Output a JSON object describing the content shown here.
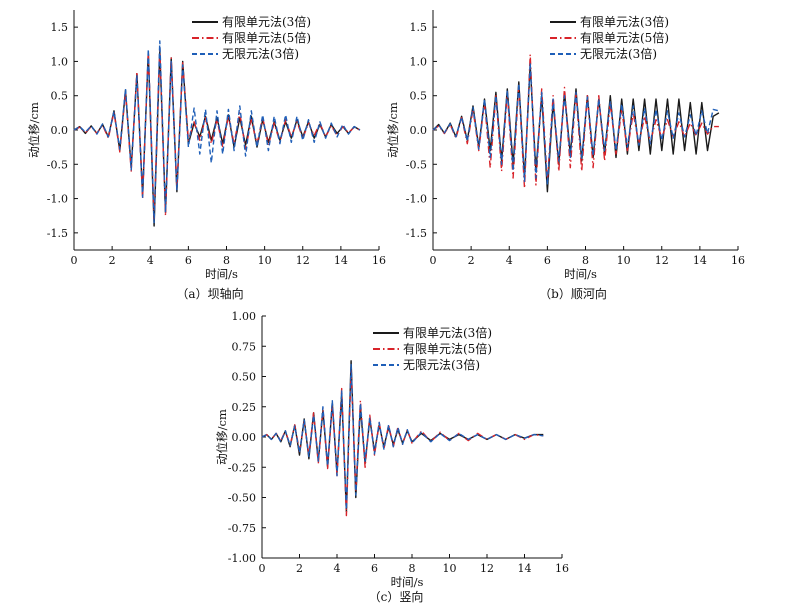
{
  "chart_data": [
    {
      "id": "a",
      "type": "line",
      "caption": "（a）坝轴向",
      "xlabel": "时间/s",
      "ylabel": "动位移/cm",
      "xlim": [
        0,
        16
      ],
      "ylim": [
        -1.75,
        1.75
      ],
      "xticks": [
        "0",
        "2",
        "4",
        "6",
        "8",
        "10",
        "12",
        "14",
        "16"
      ],
      "yticks": [
        "-1.5",
        "-1.0",
        "-0.5",
        "0.0",
        "0.5",
        "1.0",
        "1.5"
      ],
      "legend_position": "top-right",
      "series": [
        {
          "name": "有限单元法(3倍)",
          "color": "#1a1a1a",
          "dash": "solid",
          "x": [
            0,
            0.3,
            0.6,
            0.9,
            1.2,
            1.5,
            1.8,
            2.1,
            2.4,
            2.7,
            3.0,
            3.3,
            3.6,
            3.9,
            4.2,
            4.5,
            4.8,
            5.1,
            5.4,
            5.7,
            6.0,
            6.3,
            6.6,
            6.9,
            7.2,
            7.5,
            7.8,
            8.1,
            8.4,
            8.7,
            9.0,
            9.3,
            9.6,
            9.9,
            10.2,
            10.5,
            10.8,
            11.1,
            11.4,
            11.7,
            12.0,
            12.3,
            12.6,
            12.9,
            13.2,
            13.5,
            13.8,
            14.1,
            14.4,
            14.7,
            15.0
          ],
          "y": [
            0.0,
            0.05,
            -0.05,
            0.06,
            -0.05,
            0.08,
            -0.1,
            0.28,
            -0.3,
            0.58,
            -0.55,
            0.82,
            -0.95,
            1.12,
            -1.4,
            1.15,
            -1.2,
            1.05,
            -0.9,
            1.0,
            -0.2,
            0.1,
            -0.1,
            0.2,
            -0.15,
            0.18,
            -0.2,
            0.22,
            -0.25,
            0.18,
            -0.22,
            0.2,
            -0.25,
            0.15,
            -0.18,
            0.12,
            -0.15,
            0.12,
            -0.12,
            0.15,
            -0.1,
            0.12,
            -0.12,
            0.08,
            -0.1,
            0.08,
            -0.05,
            0.05,
            -0.05,
            0.05,
            0.0
          ]
        },
        {
          "name": "有限单元法(5倍)",
          "color": "#d8232a",
          "dash": "dashdot",
          "x": [
            0,
            0.3,
            0.6,
            0.9,
            1.2,
            1.5,
            1.8,
            2.1,
            2.4,
            2.7,
            3.0,
            3.3,
            3.6,
            3.9,
            4.2,
            4.5,
            4.8,
            5.1,
            5.4,
            5.7,
            6.0,
            6.3,
            6.6,
            6.9,
            7.2,
            7.5,
            7.8,
            8.1,
            8.4,
            8.7,
            9.0,
            9.3,
            9.6,
            9.9,
            10.2,
            10.5,
            10.8,
            11.1,
            11.4,
            11.7,
            12.0,
            12.3,
            12.6,
            12.9,
            13.2,
            13.5,
            13.8,
            14.1,
            14.4,
            14.7,
            15.0
          ],
          "y": [
            0.0,
            0.04,
            -0.04,
            0.05,
            -0.05,
            0.07,
            -0.12,
            0.26,
            -0.32,
            0.55,
            -0.6,
            0.85,
            -1.0,
            1.15,
            -1.3,
            1.2,
            -1.25,
            1.05,
            -0.85,
            0.98,
            -0.15,
            0.12,
            -0.15,
            0.18,
            -0.2,
            0.15,
            -0.25,
            0.2,
            -0.2,
            0.25,
            -0.28,
            0.15,
            -0.2,
            0.18,
            -0.22,
            0.1,
            -0.18,
            0.15,
            -0.1,
            0.12,
            -0.12,
            0.1,
            -0.08,
            0.1,
            -0.1,
            0.06,
            -0.08,
            0.05,
            -0.04,
            0.04,
            0.0
          ]
        },
        {
          "name": "无限元法(3倍)",
          "color": "#1f5fb8",
          "dash": "dashed",
          "x": [
            0,
            0.3,
            0.6,
            0.9,
            1.2,
            1.5,
            1.8,
            2.1,
            2.4,
            2.7,
            3.0,
            3.3,
            3.6,
            3.9,
            4.2,
            4.5,
            4.8,
            5.1,
            5.4,
            5.7,
            6.0,
            6.3,
            6.6,
            6.9,
            7.2,
            7.5,
            7.8,
            8.1,
            8.4,
            8.7,
            9.0,
            9.3,
            9.6,
            9.9,
            10.2,
            10.5,
            10.8,
            11.1,
            11.4,
            11.7,
            12.0,
            12.3,
            12.6,
            12.9,
            13.2,
            13.5,
            13.8,
            14.1,
            14.4,
            14.7,
            15.0
          ],
          "y": [
            0.0,
            0.05,
            -0.03,
            0.06,
            -0.06,
            0.09,
            -0.1,
            0.27,
            -0.28,
            0.6,
            -0.58,
            0.8,
            -0.98,
            1.18,
            -1.35,
            1.3,
            -1.2,
            1.0,
            -0.88,
            0.95,
            -0.25,
            0.32,
            -0.35,
            0.3,
            -0.48,
            0.28,
            -0.35,
            0.3,
            -0.3,
            0.35,
            -0.38,
            0.28,
            -0.25,
            0.22,
            -0.3,
            0.2,
            -0.2,
            0.22,
            -0.18,
            0.2,
            -0.15,
            0.15,
            -0.18,
            0.12,
            -0.12,
            0.1,
            -0.1,
            0.08,
            -0.06,
            0.05,
            0.0
          ]
        }
      ]
    },
    {
      "id": "b",
      "type": "line",
      "caption": "（b）顺河向",
      "xlabel": "时间/s",
      "ylabel": "动位移/cm",
      "xlim": [
        0,
        16
      ],
      "ylim": [
        -1.75,
        1.75
      ],
      "xticks": [
        "0",
        "2",
        "4",
        "6",
        "8",
        "10",
        "12",
        "14",
        "16"
      ],
      "yticks": [
        "-1.5",
        "-1.0",
        "-0.5",
        "0.0",
        "0.5",
        "1.0",
        "1.5"
      ],
      "legend_position": "top-right",
      "series": [
        {
          "name": "有限单元法(3倍)",
          "color": "#1a1a1a",
          "dash": "solid",
          "x": [
            0,
            0.3,
            0.6,
            0.9,
            1.2,
            1.5,
            1.8,
            2.1,
            2.4,
            2.7,
            3.0,
            3.3,
            3.6,
            3.9,
            4.2,
            4.5,
            4.8,
            5.1,
            5.4,
            5.7,
            6.0,
            6.3,
            6.6,
            6.9,
            7.2,
            7.5,
            7.8,
            8.1,
            8.4,
            8.7,
            9.0,
            9.3,
            9.6,
            9.9,
            10.2,
            10.5,
            10.8,
            11.1,
            11.4,
            11.7,
            12.0,
            12.3,
            12.6,
            12.9,
            13.2,
            13.5,
            13.8,
            14.1,
            14.4,
            14.7,
            15.0
          ],
          "y": [
            0.0,
            0.08,
            -0.05,
            0.1,
            -0.1,
            0.2,
            -0.15,
            0.35,
            -0.25,
            0.45,
            -0.3,
            0.55,
            -0.45,
            0.6,
            -0.5,
            0.7,
            -0.7,
            0.95,
            -0.6,
            0.5,
            -0.9,
            0.4,
            -0.5,
            0.55,
            -0.35,
            0.6,
            -0.45,
            0.5,
            -0.4,
            0.45,
            -0.35,
            0.5,
            -0.4,
            0.45,
            -0.35,
            0.45,
            -0.3,
            0.45,
            -0.35,
            0.45,
            -0.3,
            0.45,
            -0.35,
            0.45,
            -0.3,
            0.4,
            -0.35,
            0.4,
            -0.3,
            0.2,
            0.25
          ]
        },
        {
          "name": "有限单元法(5倍)",
          "color": "#d8232a",
          "dash": "dashdot",
          "x": [
            0,
            0.3,
            0.6,
            0.9,
            1.2,
            1.5,
            1.8,
            2.1,
            2.4,
            2.7,
            3.0,
            3.3,
            3.6,
            3.9,
            4.2,
            4.5,
            4.8,
            5.1,
            5.4,
            5.7,
            6.0,
            6.3,
            6.6,
            6.9,
            7.2,
            7.5,
            7.8,
            8.1,
            8.4,
            8.7,
            9.0,
            9.3,
            9.6,
            9.9,
            10.2,
            10.5,
            10.8,
            11.1,
            11.4,
            11.7,
            12.0,
            12.3,
            12.6,
            12.9,
            13.2,
            13.5,
            13.8,
            14.1,
            14.4,
            14.7,
            15.0
          ],
          "y": [
            0.0,
            0.06,
            -0.05,
            0.08,
            -0.12,
            0.18,
            -0.2,
            0.3,
            -0.3,
            0.42,
            -0.55,
            0.5,
            -0.6,
            0.55,
            -0.7,
            0.65,
            -0.85,
            1.1,
            -0.8,
            0.6,
            -0.75,
            0.5,
            -0.6,
            0.62,
            -0.55,
            0.55,
            -0.6,
            0.5,
            -0.55,
            0.5,
            -0.45,
            0.4,
            -0.35,
            0.3,
            -0.3,
            0.25,
            -0.2,
            0.2,
            -0.18,
            0.15,
            -0.12,
            0.15,
            -0.1,
            0.12,
            -0.1,
            0.1,
            -0.08,
            0.1,
            -0.06,
            0.05,
            0.05
          ]
        },
        {
          "name": "无限元法(3倍)",
          "color": "#1f5fb8",
          "dash": "dashed",
          "x": [
            0,
            0.3,
            0.6,
            0.9,
            1.2,
            1.5,
            1.8,
            2.1,
            2.4,
            2.7,
            3.0,
            3.3,
            3.6,
            3.9,
            4.2,
            4.5,
            4.8,
            5.1,
            5.4,
            5.7,
            6.0,
            6.3,
            6.6,
            6.9,
            7.2,
            7.5,
            7.8,
            8.1,
            8.4,
            8.7,
            9.0,
            9.3,
            9.6,
            9.9,
            10.2,
            10.5,
            10.8,
            11.1,
            11.4,
            11.7,
            12.0,
            12.3,
            12.6,
            12.9,
            13.2,
            13.5,
            13.8,
            14.1,
            14.4,
            14.7,
            15.0
          ],
          "y": [
            0.0,
            0.07,
            -0.04,
            0.09,
            -0.1,
            0.19,
            -0.16,
            0.33,
            -0.28,
            0.45,
            -0.4,
            0.5,
            -0.5,
            0.58,
            -0.6,
            0.68,
            -0.75,
            0.98,
            -0.7,
            0.55,
            -0.8,
            0.45,
            -0.45,
            0.5,
            -0.4,
            0.55,
            -0.42,
            0.48,
            -0.38,
            0.45,
            -0.3,
            0.42,
            -0.3,
            0.38,
            -0.25,
            0.35,
            -0.22,
            0.32,
            -0.2,
            0.3,
            -0.15,
            0.28,
            -0.12,
            0.25,
            -0.1,
            0.22,
            -0.08,
            0.28,
            -0.05,
            0.3,
            0.28
          ]
        }
      ]
    },
    {
      "id": "c",
      "type": "line",
      "caption": "（c）竖向",
      "xlabel": "时间/s",
      "ylabel": "动位移/cm",
      "xlim": [
        0,
        16
      ],
      "ylim": [
        -1.0,
        1.0
      ],
      "xticks": [
        "0",
        "2",
        "4",
        "6",
        "8",
        "10",
        "12",
        "14",
        "16"
      ],
      "yticks": [
        "-1.00",
        "-0.75",
        "-0.50",
        "-0.25",
        "0.00",
        "0.25",
        "0.50",
        "0.75",
        "1.00"
      ],
      "legend_position": "top-right",
      "series": [
        {
          "name": "有限单元法(3倍)",
          "color": "#1a1a1a",
          "dash": "solid",
          "x": [
            0,
            0.25,
            0.5,
            0.75,
            1.0,
            1.25,
            1.5,
            1.75,
            2.0,
            2.25,
            2.5,
            2.75,
            3.0,
            3.25,
            3.5,
            3.75,
            4.0,
            4.25,
            4.5,
            4.75,
            5.0,
            5.25,
            5.5,
            5.75,
            6.0,
            6.25,
            6.5,
            6.75,
            7.0,
            7.25,
            7.5,
            7.75,
            8.0,
            8.5,
            9.0,
            9.5,
            10.0,
            10.5,
            11.0,
            11.5,
            12.0,
            12.5,
            13.0,
            13.5,
            14.0,
            14.5,
            15.0
          ],
          "y": [
            0.0,
            0.02,
            -0.02,
            0.03,
            -0.04,
            0.05,
            -0.08,
            0.1,
            -0.15,
            0.15,
            -0.18,
            0.2,
            -0.2,
            0.22,
            -0.25,
            0.28,
            -0.3,
            0.35,
            -0.62,
            0.63,
            -0.5,
            0.25,
            -0.22,
            0.15,
            -0.12,
            0.1,
            -0.08,
            0.08,
            -0.06,
            0.06,
            -0.05,
            0.05,
            -0.04,
            0.03,
            -0.03,
            0.03,
            -0.02,
            0.02,
            -0.02,
            0.02,
            -0.02,
            0.02,
            -0.02,
            0.02,
            -0.01,
            0.02,
            0.02
          ]
        },
        {
          "name": "有限单元法(5倍)",
          "color": "#d8232a",
          "dash": "dashdot",
          "x": [
            0,
            0.25,
            0.5,
            0.75,
            1.0,
            1.25,
            1.5,
            1.75,
            2.0,
            2.25,
            2.5,
            2.75,
            3.0,
            3.25,
            3.5,
            3.75,
            4.0,
            4.25,
            4.5,
            4.75,
            5.0,
            5.25,
            5.5,
            5.75,
            6.0,
            6.25,
            6.5,
            6.75,
            7.0,
            7.25,
            7.5,
            7.75,
            8.0,
            8.5,
            9.0,
            9.5,
            10.0,
            10.5,
            11.0,
            11.5,
            12.0,
            12.5,
            13.0,
            13.5,
            14.0,
            14.5,
            15.0
          ],
          "y": [
            0.0,
            0.02,
            -0.02,
            0.03,
            -0.03,
            0.05,
            -0.07,
            0.1,
            -0.12,
            0.13,
            -0.15,
            0.2,
            -0.22,
            0.24,
            -0.26,
            0.27,
            -0.32,
            0.4,
            -0.65,
            0.55,
            -0.45,
            0.3,
            -0.25,
            0.18,
            -0.15,
            0.12,
            -0.1,
            0.1,
            -0.08,
            0.08,
            -0.06,
            0.06,
            -0.05,
            0.05,
            -0.04,
            0.04,
            -0.03,
            0.03,
            -0.03,
            0.03,
            -0.02,
            0.02,
            -0.02,
            0.02,
            -0.02,
            0.02,
            0.01
          ]
        },
        {
          "name": "无限元法(3倍)",
          "color": "#1f5fb8",
          "dash": "dashed",
          "x": [
            0,
            0.25,
            0.5,
            0.75,
            1.0,
            1.25,
            1.5,
            1.75,
            2.0,
            2.25,
            2.5,
            2.75,
            3.0,
            3.25,
            3.5,
            3.75,
            4.0,
            4.25,
            4.5,
            4.75,
            5.0,
            5.25,
            5.5,
            5.75,
            6.0,
            6.25,
            6.5,
            6.75,
            7.0,
            7.25,
            7.5,
            7.75,
            8.0,
            8.5,
            9.0,
            9.5,
            10.0,
            10.5,
            11.0,
            11.5,
            12.0,
            12.5,
            13.0,
            13.5,
            14.0,
            14.5,
            15.0
          ],
          "y": [
            0.0,
            0.02,
            -0.02,
            0.03,
            -0.04,
            0.05,
            -0.07,
            0.09,
            -0.13,
            0.14,
            -0.16,
            0.18,
            -0.2,
            0.25,
            -0.24,
            0.3,
            -0.32,
            0.38,
            -0.6,
            0.6,
            -0.48,
            0.28,
            -0.2,
            0.16,
            -0.14,
            0.12,
            -0.1,
            0.1,
            -0.08,
            0.08,
            -0.06,
            0.06,
            -0.05,
            0.04,
            -0.04,
            0.03,
            -0.03,
            0.03,
            -0.02,
            0.02,
            -0.02,
            0.02,
            -0.02,
            0.02,
            -0.01,
            0.02,
            0.01
          ]
        }
      ]
    }
  ]
}
